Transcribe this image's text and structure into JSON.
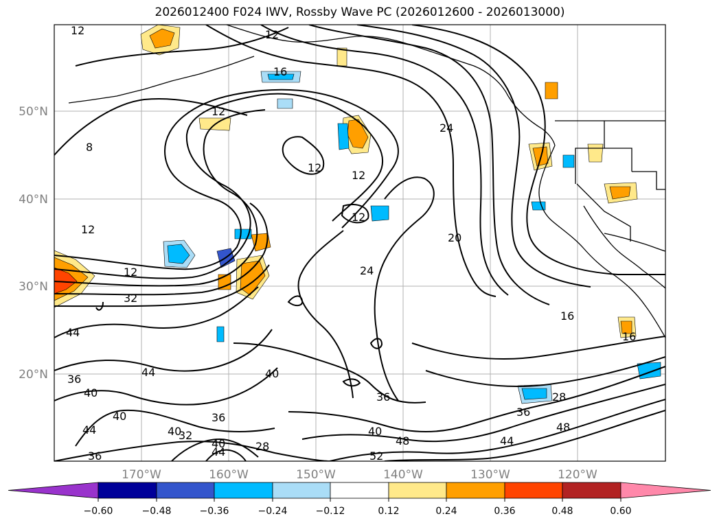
{
  "title": "2026012400 F024 IWV, Rossby Wave PC (2026012600 - 2026013000)",
  "lat_labels": [
    "50°N",
    "40°N",
    "30°N",
    "20°N"
  ],
  "lon_labels": [
    "170°W",
    "160°W",
    "150°W",
    "140°W",
    "130°W",
    "120°W"
  ],
  "colorbar": {
    "tick_labels": [
      "−0.60",
      "−0.48",
      "−0.36",
      "−0.24",
      "−0.12",
      "0.12",
      "0.24",
      "0.36",
      "0.48",
      "0.60"
    ],
    "colors": [
      "#9933cc",
      "#000099",
      "#3355cc",
      "#00bbff",
      "#aaddf7",
      "#ffffff",
      "#ffe98a",
      "#ff9f00",
      "#ff4400",
      "#b22222",
      "#ff88aa"
    ]
  },
  "contour_labels": {
    "c12_nw": "12",
    "c12_n": "12",
    "c16_n": "16",
    "c12_mid": "12",
    "c8": "8",
    "c12_a": "12",
    "c12_b": "12",
    "c12_c": "12",
    "c24_ne": "24",
    "c12_w": "12",
    "c12_sw": "12",
    "c32": "32",
    "c20": "20",
    "c24_c": "24",
    "c16_e": "16",
    "c16_se": "16",
    "c44_w": "44",
    "c44_sw": "44",
    "c36_w": "36",
    "c40_w": "40",
    "c40_sw": "40",
    "c44_s": "44",
    "c36_bl": "36",
    "c40_s": "40",
    "c32_s": "32",
    "c36_s": "36",
    "c40_c": "40",
    "c44_c": "44",
    "c28_s": "28",
    "c36_c": "36",
    "c40_se": "40",
    "c48_s": "48",
    "c52": "52",
    "c28_e": "28",
    "c36_e": "36",
    "c44_e": "44",
    "c48_e": "48",
    "c40_mid": "40"
  }
}
